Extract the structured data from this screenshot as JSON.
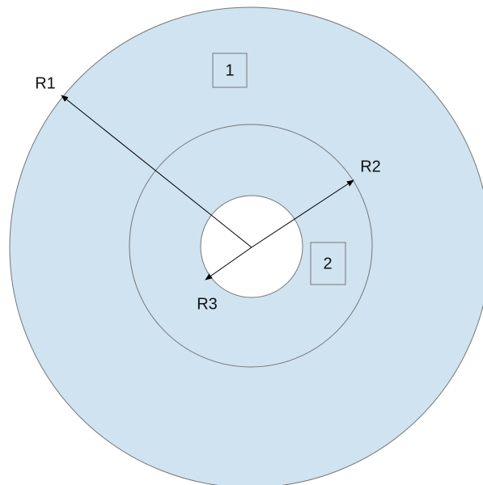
{
  "radii": [
    "R1",
    "R2",
    "R3"
  ],
  "regions": [
    "1",
    "2"
  ]
}
